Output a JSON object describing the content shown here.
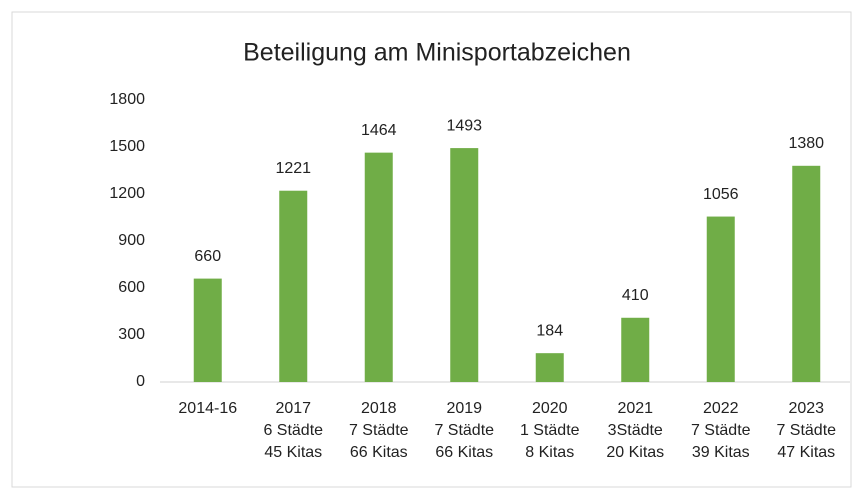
{
  "chart_data": {
    "type": "bar",
    "title": "Beteiligung am Minisportabzeichen",
    "categories": [
      [
        "2014-16"
      ],
      [
        "2017",
        "6 Städte",
        "45 Kitas"
      ],
      [
        "2018",
        "7 Städte",
        "66 Kitas"
      ],
      [
        "2019",
        "7 Städte",
        "66 Kitas"
      ],
      [
        "2020",
        "1 Städte",
        "8 Kitas"
      ],
      [
        "2021",
        "3Städte",
        "20 Kitas"
      ],
      [
        "2022",
        "7 Städte",
        "39 Kitas"
      ],
      [
        "2023",
        "7 Städte",
        "47 Kitas"
      ]
    ],
    "values": [
      660,
      1221,
      1464,
      1493,
      184,
      410,
      1056,
      1380
    ],
    "color": "#70ad47",
    "ylim": [
      0,
      1800
    ],
    "yticks": [
      0,
      300,
      600,
      900,
      1200,
      1500,
      1800
    ],
    "grid": false
  }
}
